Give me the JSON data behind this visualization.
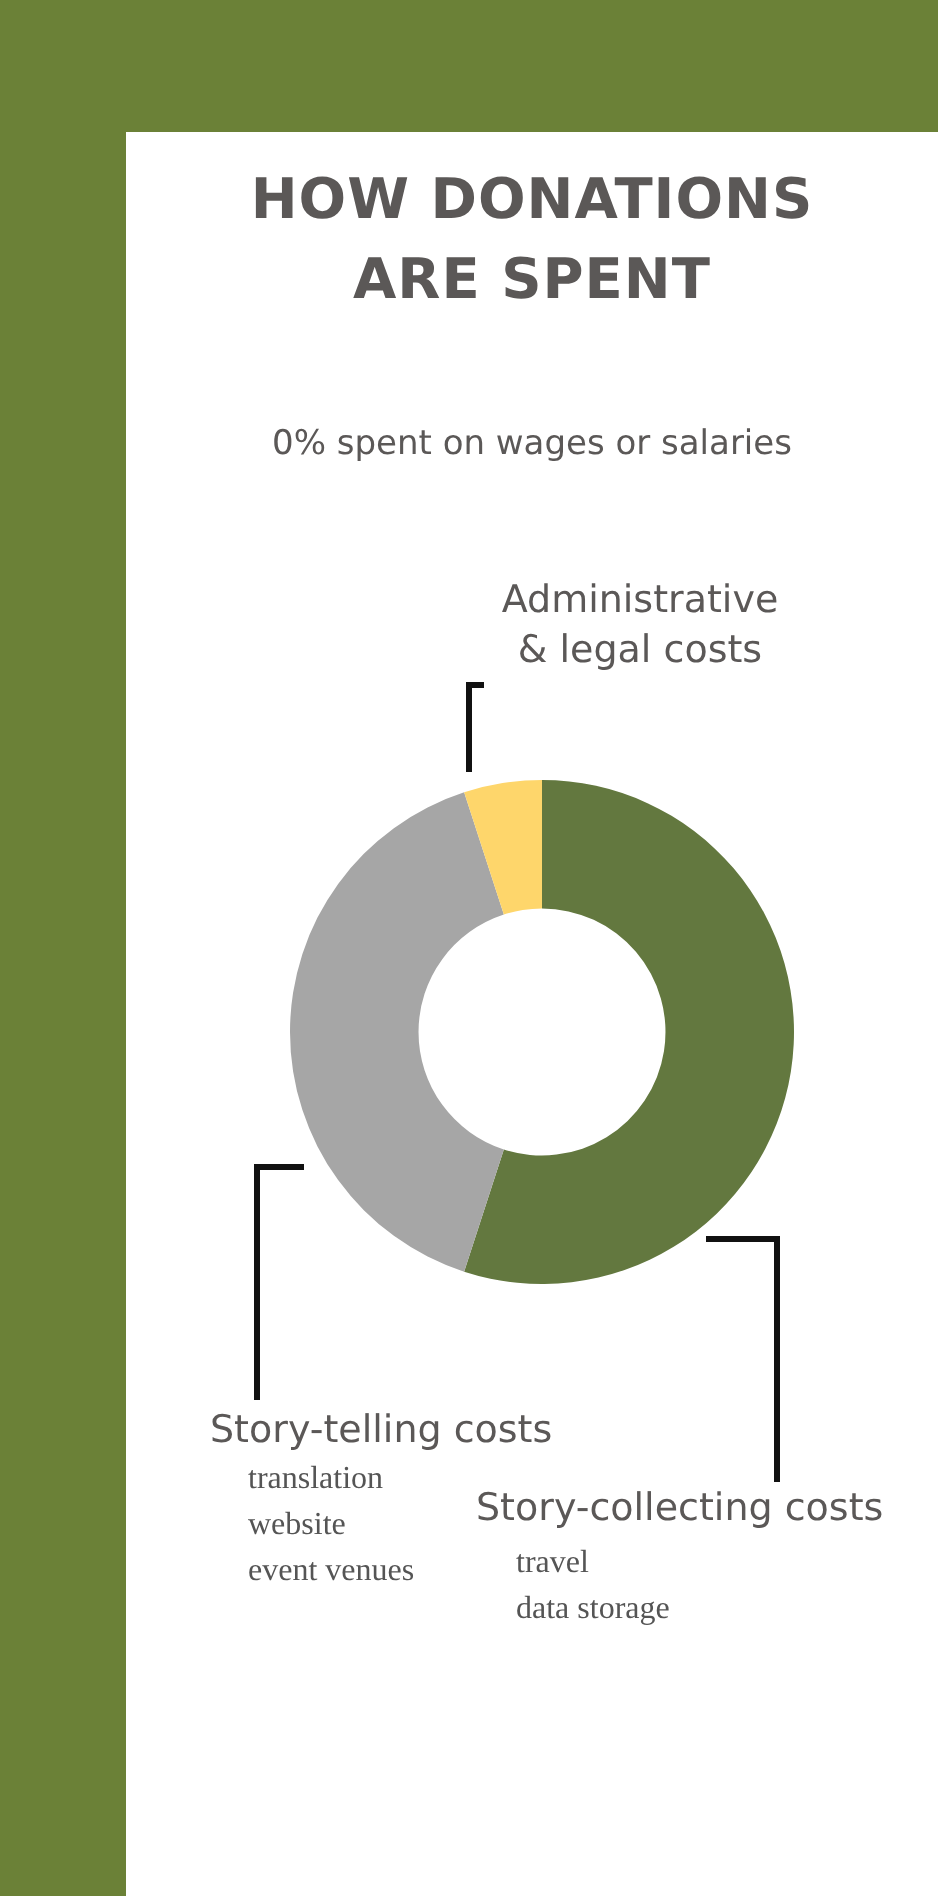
{
  "chart_data": {
    "type": "donut",
    "title": "HOW DONATIONS ARE SPENT",
    "subtitle": "0% spent on wages or salaries",
    "categories": [
      "Story-collecting costs",
      "Story-telling costs",
      "Administrative & legal costs"
    ],
    "values": [
      55,
      40,
      5
    ],
    "colors": [
      "#63783f",
      "#a6a6a6",
      "#fed66b"
    ],
    "annotations": [
      "translation",
      "website",
      "event venues",
      "travel",
      "data storage"
    ]
  }
}
